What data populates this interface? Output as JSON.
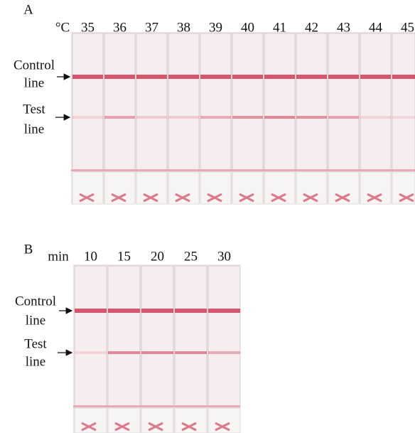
{
  "panels": [
    {
      "label": "A",
      "unit": "°C",
      "columns": [
        "35",
        "36",
        "37",
        "38",
        "39",
        "40",
        "41",
        "42",
        "43",
        "44",
        "45"
      ],
      "control_label": [
        "Control",
        "line"
      ],
      "test_label": [
        "Test",
        "line"
      ]
    },
    {
      "label": "B",
      "unit": "min",
      "columns": [
        "10",
        "15",
        "20",
        "25",
        "30"
      ],
      "control_label": [
        "Control",
        "line"
      ],
      "test_label": [
        "Test",
        "line"
      ]
    }
  ]
}
